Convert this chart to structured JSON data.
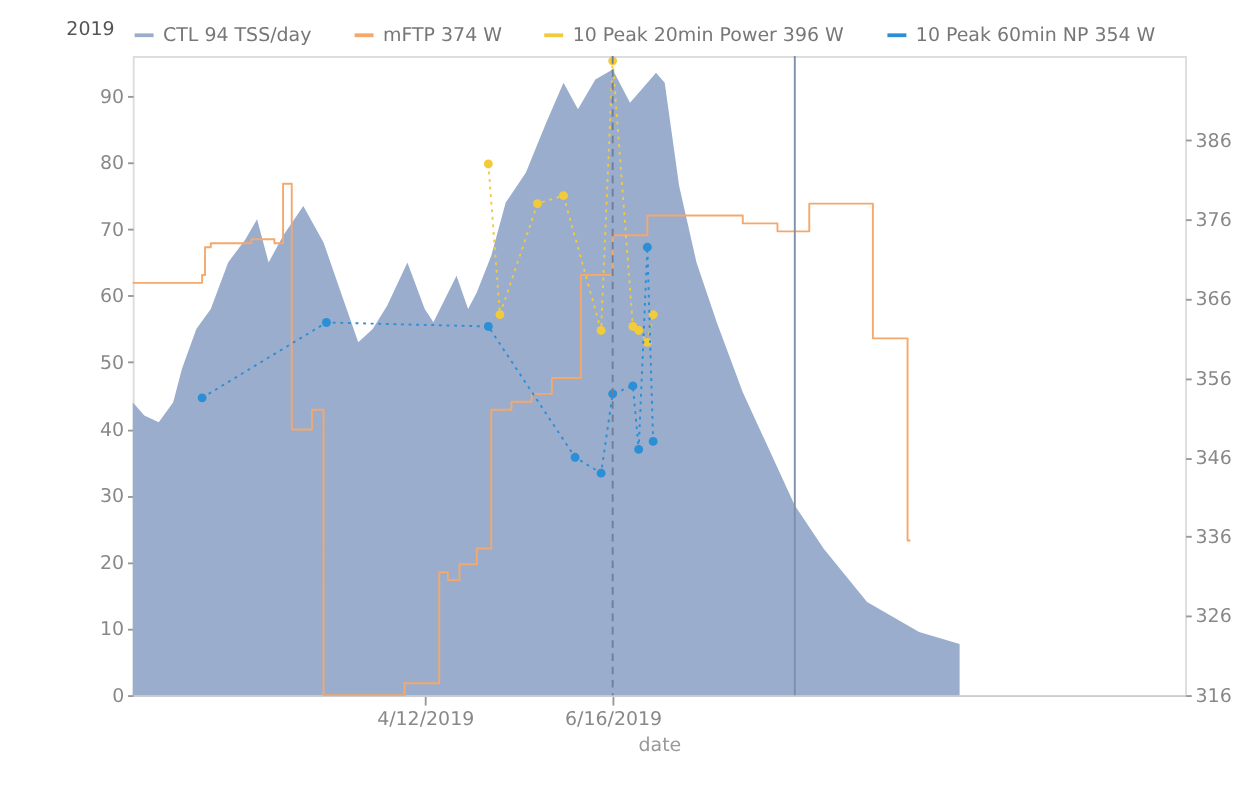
{
  "chart_data": {
    "type": "area",
    "xlabel": "date",
    "legend": "top",
    "grid": false,
    "xlim": [
      "2019-01-01",
      "2019-12-31"
    ],
    "xticks": [
      {
        "value": "2019-04-12",
        "label": "4/12/2019"
      },
      {
        "value": "2019-06-16",
        "label": "6/16/2019"
      }
    ],
    "ylim": [
      0,
      96
    ],
    "yticks": [
      0,
      10,
      20,
      30,
      40,
      50,
      60,
      70,
      80,
      90
    ],
    "y2lim": [
      316,
      396.6
    ],
    "y2ticks": [
      316,
      326,
      336,
      346,
      356,
      366,
      376,
      386
    ],
    "annotations": [
      "2019"
    ],
    "ref_lines": [
      {
        "axis": "x",
        "value": "2019-06-16",
        "label": null,
        "line_style": "dashed",
        "color": "#6f7f99"
      },
      {
        "axis": "x",
        "value": "2019-08-18",
        "label": null,
        "line_style": "solid",
        "color": "#7f8fa8"
      }
    ],
    "series": [
      {
        "name": "CTL 94 TSS/day",
        "type": "area",
        "color": "#9aadcd",
        "x": [
          "2019-01-01",
          "2019-01-05",
          "2019-01-10",
          "2019-01-15",
          "2019-01-18",
          "2019-01-23",
          "2019-01-28",
          "2019-02-03",
          "2019-02-09",
          "2019-02-13",
          "2019-02-17",
          "2019-02-22",
          "2019-03-01",
          "2019-03-08",
          "2019-03-14",
          "2019-03-20",
          "2019-03-25",
          "2019-03-30",
          "2019-04-06",
          "2019-04-12",
          "2019-04-15",
          "2019-04-23",
          "2019-04-27",
          "2019-04-30",
          "2019-05-05",
          "2019-05-10",
          "2019-05-17",
          "2019-05-24",
          "2019-05-30",
          "2019-06-04",
          "2019-06-10",
          "2019-06-16",
          "2019-06-22",
          "2019-06-26",
          "2019-07-01",
          "2019-07-04",
          "2019-07-09",
          "2019-07-15",
          "2019-07-22",
          "2019-07-31",
          "2019-08-09",
          "2019-08-18",
          "2019-08-28",
          "2019-09-12",
          "2019-09-30",
          "2019-10-14"
        ],
        "values": [
          44,
          42,
          41,
          44,
          49,
          55,
          58,
          65,
          68.5,
          71.5,
          65,
          69,
          73.5,
          68,
          60.5,
          53,
          55,
          58.5,
          65,
          58,
          56,
          63,
          58,
          60.5,
          66,
          74,
          78.5,
          86,
          92,
          88,
          92.5,
          94,
          89,
          91,
          93.5,
          92,
          76.5,
          65,
          56,
          45.5,
          37,
          28.5,
          22,
          14,
          9.5,
          7.7
        ]
      },
      {
        "name": "mFTP 374 W",
        "type": "step",
        "axis": "y2",
        "color": "#f4a86c",
        "line_style": "solid",
        "x": [
          "2019-01-01",
          "2019-01-25",
          "2019-01-26",
          "2019-01-28",
          "2019-02-11",
          "2019-02-19",
          "2019-02-22",
          "2019-02-25",
          "2019-03-04",
          "2019-03-08",
          "2019-04-05",
          "2019-04-17",
          "2019-04-20",
          "2019-04-24",
          "2019-04-30",
          "2019-05-05",
          "2019-05-12",
          "2019-05-19",
          "2019-05-26",
          "2019-06-05",
          "2019-06-16",
          "2019-06-28",
          "2019-07-31",
          "2019-08-12",
          "2019-08-23",
          "2019-09-14",
          "2019-09-26",
          "2019-09-27"
        ],
        "values": [
          368,
          369,
          372.5,
          373,
          373.5,
          373,
          380.5,
          349.5,
          352,
          316,
          317.5,
          331.5,
          330.5,
          332.5,
          334.5,
          352,
          353,
          354,
          356,
          369,
          374,
          376.5,
          375.5,
          374.5,
          378,
          361,
          335.5,
          335.5
        ]
      },
      {
        "name": "10 Peak 20min Power 396 W",
        "type": "line",
        "axis": "y2",
        "color": "#f2cb3c",
        "marker": "circle",
        "line_style": "dotted",
        "x": [
          "2019-05-04",
          "2019-05-08",
          "2019-05-21",
          "2019-05-30",
          "2019-06-12",
          "2019-06-16",
          "2019-06-23",
          "2019-06-25",
          "2019-06-28",
          "2019-06-30"
        ],
        "values": [
          383,
          364,
          378,
          379,
          362,
          396,
          362.5,
          362,
          360.5,
          364
        ]
      },
      {
        "name": "10 Peak 60min NP 354 W",
        "type": "line",
        "axis": "y2",
        "color": "#2a8fd6",
        "marker": "circle",
        "line_style": "dotted",
        "x": [
          "2019-01-25",
          "2019-03-09",
          "2019-05-04",
          "2019-06-03",
          "2019-06-12",
          "2019-06-16",
          "2019-06-23",
          "2019-06-25",
          "2019-06-28",
          "2019-06-30"
        ],
        "values": [
          353.5,
          363,
          362.5,
          346,
          344,
          354,
          355,
          347,
          372.5,
          348
        ]
      }
    ]
  }
}
